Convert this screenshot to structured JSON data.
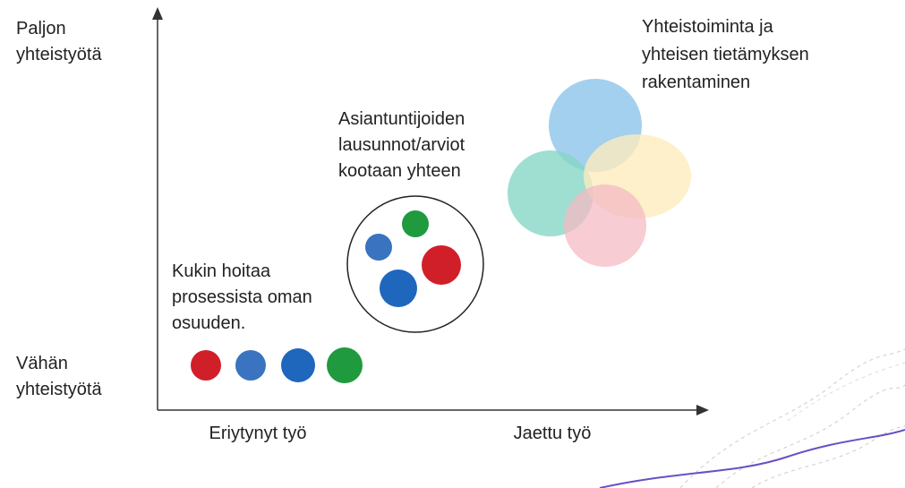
{
  "y_axis": {
    "top_label": [
      "Paljon",
      "yhteistyötä"
    ],
    "bottom_label": [
      "Vähän",
      "yhteistyötä"
    ]
  },
  "x_axis": {
    "left_label": "Eriytynyt työ",
    "right_label": "Jaettu työ"
  },
  "groups": [
    {
      "label": [
        "Kukin hoitaa",
        "prosessista oman",
        "osuuden."
      ]
    },
    {
      "label": [
        "Asiantuntijoiden",
        "lausunnot/arviot",
        "kootaan yhteen"
      ]
    },
    {
      "label": [
        "Yhteistoiminta ja",
        "yhteisen tietämyksen",
        "rakentaminen"
      ]
    }
  ]
}
